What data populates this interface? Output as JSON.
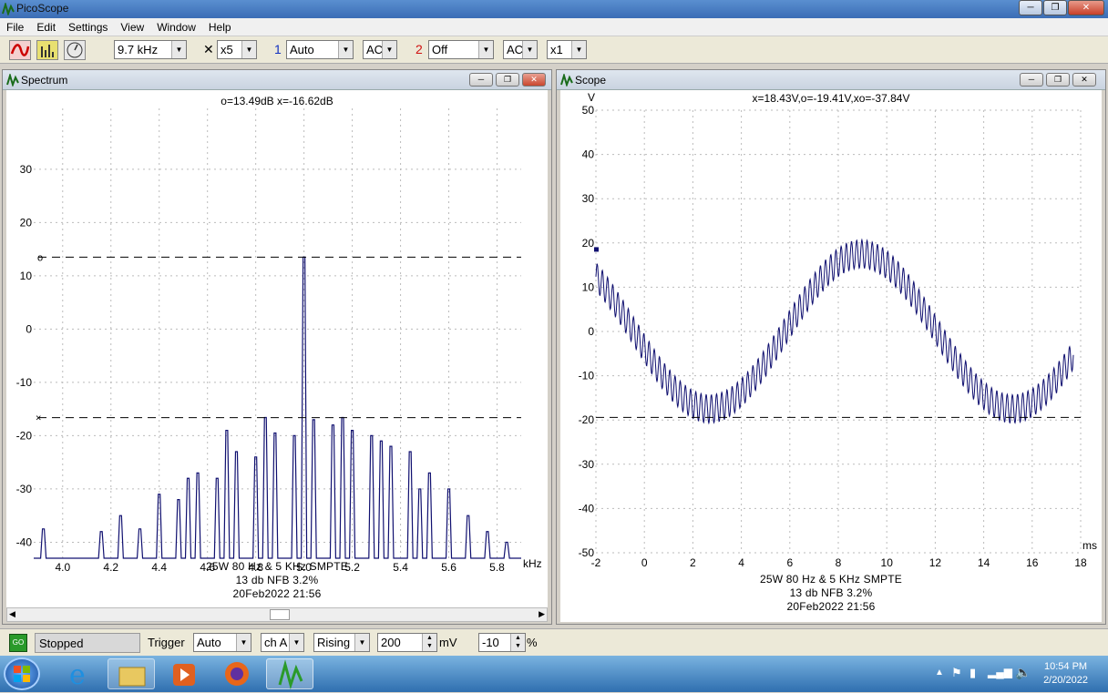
{
  "app": {
    "title": "PicoScope",
    "window_buttons": [
      "─",
      "❐",
      "✕"
    ]
  },
  "menu": [
    "File",
    "Edit",
    "Settings",
    "View",
    "Window",
    "Help"
  ],
  "toolbar": {
    "timebase": "9.7 kHz",
    "multiplier_icon": "✕",
    "multiplier": "x5",
    "ch1_label": "1",
    "ch1_range": "Auto",
    "ch1_coupling": "AC",
    "ch2_label": "2",
    "ch2_range": "Off",
    "ch2_coupling": "AC",
    "ch2_mult": "x1"
  },
  "spectrum": {
    "title": "Spectrum",
    "readout": "o=13.49dB  x=-16.62dB",
    "caption": [
      "25W 80 Hz & 5 KHz SMPTE",
      "13 db NFB 3.2%",
      "20Feb2022  21:56"
    ]
  },
  "scope": {
    "title": "Scope",
    "readout": "x=18.43V,o=-19.41V,xo=-37.84V",
    "caption": [
      "25W 80 Hz & 5 KHz SMPTE",
      "13 db NFB 3.2%",
      "20Feb2022  21:56"
    ]
  },
  "chart_data": [
    {
      "type": "line",
      "name": "Spectrum",
      "xlabel": "kHz",
      "ylabel": "",
      "xlim": [
        3.88,
        5.9
      ],
      "ylim": [
        -43,
        38
      ],
      "x_ticks": [
        "4.0",
        "4.2",
        "4.4",
        "4.6",
        "4.8",
        "5.0",
        "5.2",
        "5.4",
        "5.6",
        "5.8"
      ],
      "y_ticks": [
        "30",
        "20",
        "10",
        "0",
        "-10",
        "-20",
        "-30",
        "-40"
      ],
      "markers": {
        "o": 13.49,
        "x": -16.62
      },
      "peaks": [
        {
          "f": 3.84,
          "db": -40
        },
        {
          "f": 3.92,
          "db": -37.5
        },
        {
          "f": 4.16,
          "db": -38
        },
        {
          "f": 4.24,
          "db": -35
        },
        {
          "f": 4.32,
          "db": -37.5
        },
        {
          "f": 4.4,
          "db": -31
        },
        {
          "f": 4.48,
          "db": -32
        },
        {
          "f": 4.56,
          "db": -27
        },
        {
          "f": 4.64,
          "db": -28
        },
        {
          "f": 4.72,
          "db": -23
        },
        {
          "f": 4.8,
          "db": -24
        },
        {
          "f": 4.88,
          "db": -19.5
        },
        {
          "f": 4.96,
          "db": -20
        },
        {
          "f": 5.04,
          "db": -17
        },
        {
          "f": 5.12,
          "db": -18
        },
        {
          "f": 5.2,
          "db": -19
        },
        {
          "f": 5.28,
          "db": -20
        },
        {
          "f": 5.36,
          "db": -22
        },
        {
          "f": 5.44,
          "db": -23
        },
        {
          "f": 5.52,
          "db": -27
        },
        {
          "f": 5.6,
          "db": -30
        },
        {
          "f": 5.68,
          "db": -35
        },
        {
          "f": 5.76,
          "db": -38
        },
        {
          "f": 5.84,
          "db": -40
        },
        {
          "f": 5.0,
          "db": 13.5
        },
        {
          "f": 4.84,
          "db": -16.6
        },
        {
          "f": 5.16,
          "db": -16.6
        },
        {
          "f": 4.52,
          "db": -28
        },
        {
          "f": 5.48,
          "db": -30
        },
        {
          "f": 4.68,
          "db": -19
        },
        {
          "f": 5.32,
          "db": -21
        }
      ],
      "floor": -43
    },
    {
      "type": "line",
      "name": "Scope",
      "xlabel": "ms",
      "ylabel": "V",
      "xlim": [
        -2,
        10
      ],
      "ylim": [
        -50,
        50
      ],
      "x_ticks": [
        "-2",
        "0",
        "2",
        "4",
        "6",
        "8",
        "10",
        "12",
        "14",
        "16",
        "18"
      ],
      "y_ticks": [
        "50",
        "40",
        "30",
        "20",
        "10",
        "0",
        "-10",
        "-20",
        "-30",
        "-40",
        "-50"
      ],
      "markers": {
        "x": 18.43,
        "o": -19.41
      },
      "low_freq_amp": 17.5,
      "low_freq_period_ms": 12.5,
      "high_freq_amp": 3.2,
      "high_freq_cycles": 92
    }
  ],
  "status": {
    "go": "GO",
    "state": "Stopped",
    "trigger_label": "Trigger",
    "trigger_mode": "Auto",
    "channel": "ch A",
    "edge": "Rising",
    "level": "200",
    "level_unit": "mV",
    "delay": "-10",
    "delay_unit": "%"
  },
  "taskbar": {
    "time": "10:54 PM",
    "date": "2/20/2022"
  }
}
